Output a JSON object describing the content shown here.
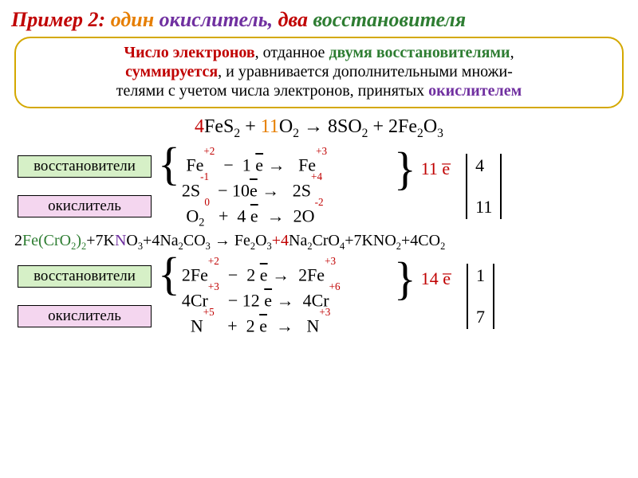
{
  "title": {
    "lead": "Пример 2:",
    "one": "один",
    "oxid": "окислитель,",
    "two": "два",
    "reduc": "восстановителя",
    "lead_color": "#c00000",
    "one_color": "#e67e00",
    "oxid_color": "#7030a0",
    "two_color": "#c00000",
    "reduc_color": "#2e7d32",
    "fontsize": 26
  },
  "rule": {
    "l1_a": "Число электронов",
    "l1_b": ", отданное ",
    "l1_c": "двумя восстановителями",
    "l1_d": ",",
    "l2_a": "суммируется",
    "l2_b": ", и уравнивается дополнительными множи-",
    "l3_a": "телями с учетом числа электронов, принятых ",
    "l3_b": "окислителем",
    "border_color": "#d4a800",
    "red": "#c00000",
    "green": "#2e7d32",
    "purple": "#7030a0"
  },
  "eq1": {
    "c1": "4",
    "s1": "FeS",
    "s1sub": "2",
    "plus1": "  +  ",
    "c2": "11",
    "s2": "O",
    "s2sub": "2",
    "arrow": " → ",
    "c3": "8",
    "s3": "SO",
    "s3sub": "2",
    "plus2": " + ",
    "c4": "2",
    "s4": "Fe",
    "s4sub": "2",
    "s5": "O",
    "s5sub": "3",
    "c1_color": "#c00000",
    "c2_color": "#e67e00"
  },
  "labels": {
    "reduc": "восстановители",
    "oxid": "окислитель",
    "reduc_bg": "#d6f0c7",
    "oxid_bg": "#f4d6ef"
  },
  "scheme1": {
    "rows": [
      {
        "r": "Fe",
        "r_sup": "+2",
        "op": "−",
        "n": "1",
        "e": "e",
        "arrow": "→",
        "p": "Fe",
        "p_sup": "+3"
      },
      {
        "r": "2S",
        "r_sup": "-1",
        "op": "−",
        "n": "10",
        "e": "e",
        "arrow": "→",
        "p": "2S",
        "p_sup": "+4"
      },
      {
        "r": "O₂",
        "r_sup": "0",
        "op": "+",
        "n": "4",
        "e": "e",
        "arrow": "→",
        "p": "2O",
        "p_sup": "-2"
      }
    ],
    "sum": "11 e̅",
    "mult_top": "4",
    "mult_bot": "11"
  },
  "eq2": {
    "a": "2",
    "b": "Fe(",
    "c": "Cr",
    "d": "O",
    "dsub": "2",
    "e": ")",
    "esub": "2",
    "f": "+7K",
    "g": "N",
    "h": "O",
    "hsub": "3",
    "i": "+4Na",
    "isub": "2",
    "j": "CO",
    "jsub": "3",
    "arrow": " → ",
    "k": "Fe",
    "ksub": "2",
    "l": "O",
    "lsub": "3",
    "m": "+4",
    "n": "Na",
    "nsub": "2",
    "o": "CrO",
    "osub": "4",
    "p": "+7KNO",
    "psub": "2",
    "q": "+4CO",
    "qsub": "2",
    "green": "#2e7d32",
    "purple": "#7030a0",
    "red": "#c00000"
  },
  "scheme2": {
    "rows": [
      {
        "r": "2Fe",
        "r_sup": "+2",
        "op": "−",
        "n": "2",
        "e": "e",
        "arrow": "→",
        "p": "2Fe",
        "p_sup": "+3"
      },
      {
        "r": "4Cr",
        "r_sup": "+3",
        "op": "−",
        "n": "12",
        "e": "e",
        "arrow": "→",
        "p": "4Cr",
        "p_sup": "+6"
      },
      {
        "r": "N",
        "r_sup": "+5",
        "op": "+",
        "n": "2",
        "e": "e",
        "arrow": "→",
        "p": "N",
        "p_sup": "+3"
      }
    ],
    "sum": "14 e̅",
    "mult_top": "1",
    "mult_bot": "7"
  }
}
